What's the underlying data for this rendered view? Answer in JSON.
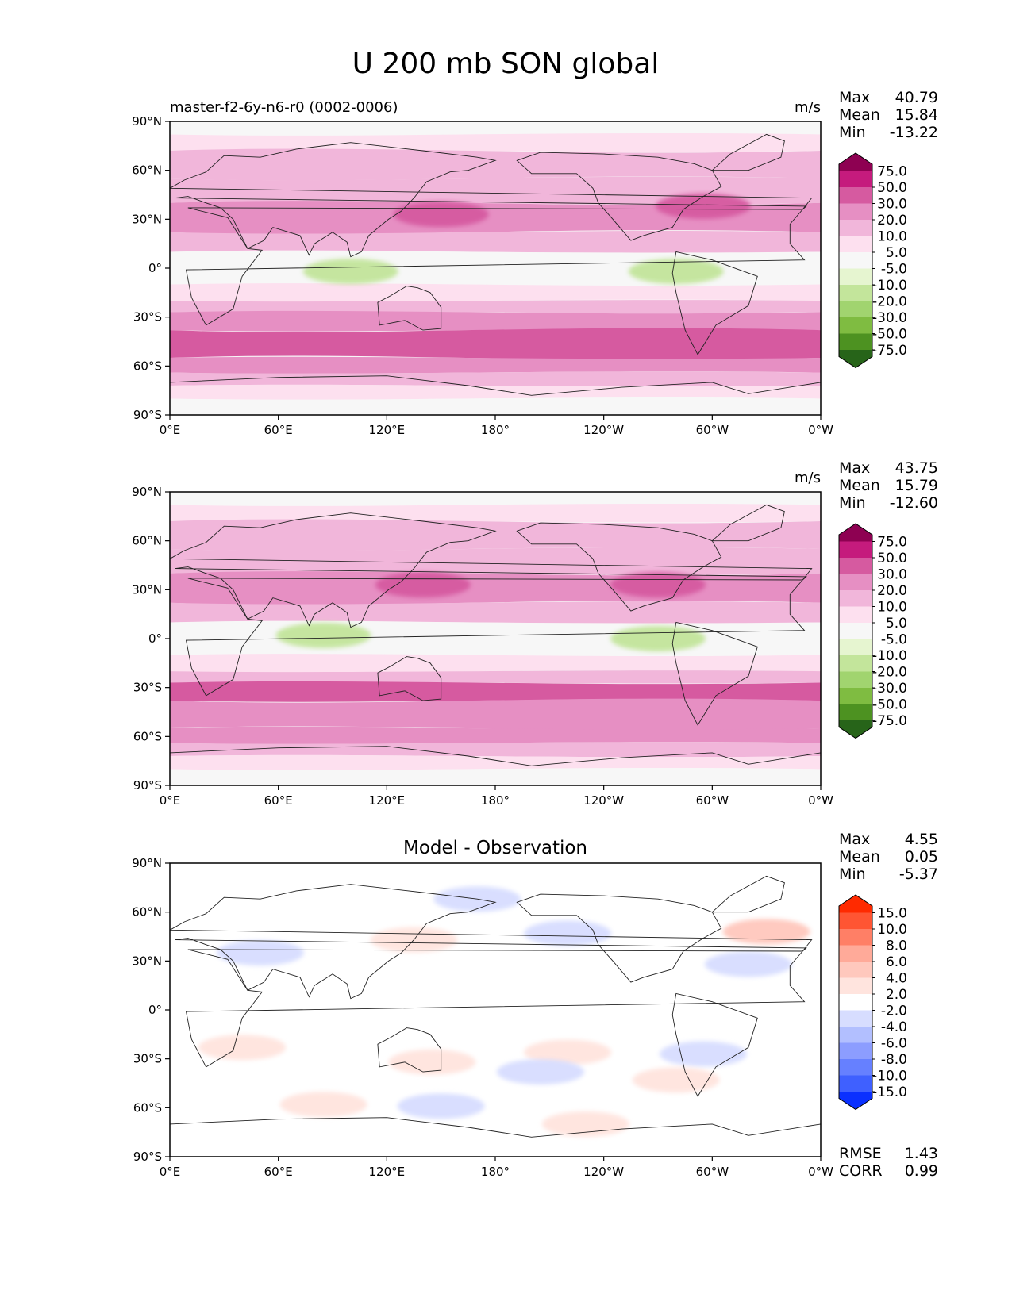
{
  "title": "U 200 mb SON global",
  "x_ticks": [
    "0°E",
    "60°E",
    "120°E",
    "180°",
    "120°W",
    "60°W",
    "0°W"
  ],
  "y_ticks": [
    "90°N",
    "60°N",
    "30°N",
    "0°",
    "30°S",
    "60°S",
    "90°S"
  ],
  "panels": [
    {
      "name": "model",
      "left_title": "master-f2-6y-n6-r0 (0002-0006)",
      "center_title": "",
      "units": "m/s",
      "stats": [
        {
          "label": "Max",
          "value": "40.79"
        },
        {
          "label": "Mean",
          "value": "15.84"
        },
        {
          "label": "Min",
          "value": "-13.22"
        }
      ],
      "colorbar": {
        "levels": [
          "75.0",
          "50.0",
          "30.0",
          "20.0",
          "10.0",
          "5.0",
          "-5.0",
          "-10.0",
          "-20.0",
          "-30.0",
          "-50.0",
          "-75.0"
        ],
        "colors": [
          "#8e0152",
          "#c51b7d",
          "#d65aa0",
          "#e68fc3",
          "#f1b6da",
          "#fde0ef",
          "#f7f7f7",
          "#e6f5d0",
          "#c3e59b",
          "#a1d46f",
          "#7fbc41",
          "#4d9221",
          "#276419"
        ]
      },
      "rmse_corr": []
    },
    {
      "name": "observation",
      "left_title": "",
      "center_title": "",
      "units": "m/s",
      "stats": [
        {
          "label": "Max",
          "value": "43.75"
        },
        {
          "label": "Mean",
          "value": "15.79"
        },
        {
          "label": "Min",
          "value": "-12.60"
        }
      ],
      "colorbar": {
        "levels": [
          "75.0",
          "50.0",
          "30.0",
          "20.0",
          "10.0",
          "5.0",
          "-5.0",
          "-10.0",
          "-20.0",
          "-30.0",
          "-50.0",
          "-75.0"
        ],
        "colors": [
          "#8e0152",
          "#c51b7d",
          "#d65aa0",
          "#e68fc3",
          "#f1b6da",
          "#fde0ef",
          "#f7f7f7",
          "#e6f5d0",
          "#c3e59b",
          "#a1d46f",
          "#7fbc41",
          "#4d9221",
          "#276419"
        ]
      },
      "rmse_corr": []
    },
    {
      "name": "difference",
      "left_title": "",
      "center_title": "Model - Observation",
      "units": "",
      "stats": [
        {
          "label": "Max",
          "value": "4.55"
        },
        {
          "label": "Mean",
          "value": "0.05"
        },
        {
          "label": "Min",
          "value": "-5.37"
        }
      ],
      "colorbar": {
        "levels": [
          "15.0",
          "10.0",
          "8.0",
          "6.0",
          "4.0",
          "2.0",
          "-2.0",
          "-4.0",
          "-6.0",
          "-8.0",
          "-10.0",
          "-15.0"
        ],
        "colors": [
          "#ff2a00",
          "#ff5533",
          "#ff7f66",
          "#ffaa99",
          "#ffc8bd",
          "#ffe4de",
          "#ffffff",
          "#d7ddff",
          "#b2bfff",
          "#8c9dff",
          "#6680ff",
          "#3f60ff",
          "#0a30ff"
        ]
      },
      "rmse_corr": [
        {
          "label": "RMSE",
          "value": "1.43"
        },
        {
          "label": "CORR",
          "value": "0.99"
        }
      ]
    }
  ],
  "chart_data": [
    {
      "type": "heatmap",
      "title": "U 200 mb SON global",
      "subtitle": "master-f2-6y-n6-r0 (0002-0006)",
      "units": "m/s",
      "x_range": [
        0,
        360
      ],
      "y_range": [
        -90,
        90
      ],
      "bands": [
        {
          "lat": [
            82,
            90
          ],
          "value": 0
        },
        {
          "lat": [
            72,
            82
          ],
          "value": 7
        },
        {
          "lat": [
            55,
            72
          ],
          "value": 12
        },
        {
          "lat": [
            40,
            55
          ],
          "value": 18
        },
        {
          "lat": [
            22,
            40
          ],
          "value": 25
        },
        {
          "lat": [
            10,
            22
          ],
          "value": 12
        },
        {
          "lat": [
            3,
            10
          ],
          "value": 2
        },
        {
          "lat": [
            -10,
            3
          ],
          "value": -4
        },
        {
          "lat": [
            -20,
            -10
          ],
          "value": 7
        },
        {
          "lat": [
            -27,
            -20
          ],
          "value": 15
        },
        {
          "lat": [
            -38,
            -27
          ],
          "value": 25
        },
        {
          "lat": [
            -55,
            -38
          ],
          "value": 32
        },
        {
          "lat": [
            -64,
            -55
          ],
          "value": 25
        },
        {
          "lat": [
            -72,
            -64
          ],
          "value": 15
        },
        {
          "lat": [
            -80,
            -72
          ],
          "value": 7
        },
        {
          "lat": [
            -90,
            -80
          ],
          "value": 0
        }
      ],
      "features": [
        {
          "lon": 150,
          "lat": 33,
          "value": 35
        },
        {
          "lon": 295,
          "lat": 38,
          "value": 35
        },
        {
          "lon": 100,
          "lat": -2,
          "value": -12
        },
        {
          "lon": 280,
          "lat": -2,
          "value": -12
        }
      ]
    },
    {
      "type": "heatmap",
      "units": "m/s",
      "x_range": [
        0,
        360
      ],
      "y_range": [
        -90,
        90
      ],
      "bands": [
        {
          "lat": [
            82,
            90
          ],
          "value": 0
        },
        {
          "lat": [
            72,
            82
          ],
          "value": 7
        },
        {
          "lat": [
            55,
            72
          ],
          "value": 12
        },
        {
          "lat": [
            40,
            55
          ],
          "value": 18
        },
        {
          "lat": [
            22,
            40
          ],
          "value": 25
        },
        {
          "lat": [
            10,
            22
          ],
          "value": 12
        },
        {
          "lat": [
            3,
            10
          ],
          "value": 2
        },
        {
          "lat": [
            -10,
            3
          ],
          "value": -4
        },
        {
          "lat": [
            -20,
            -10
          ],
          "value": 7
        },
        {
          "lat": [
            -27,
            -20
          ],
          "value": 15
        },
        {
          "lat": [
            -38,
            -27
          ],
          "value": 32
        },
        {
          "lat": [
            -55,
            -38
          ],
          "value": 25
        },
        {
          "lat": [
            -64,
            -55
          ],
          "value": 25
        },
        {
          "lat": [
            -72,
            -64
          ],
          "value": 15
        },
        {
          "lat": [
            -80,
            -72
          ],
          "value": 7
        },
        {
          "lat": [
            -90,
            -80
          ],
          "value": 0
        }
      ],
      "features": [
        {
          "lon": 140,
          "lat": 33,
          "value": 35
        },
        {
          "lon": 270,
          "lat": 33,
          "value": 35
        },
        {
          "lon": 85,
          "lat": 2,
          "value": -12
        },
        {
          "lon": 270,
          "lat": 0,
          "value": -12
        }
      ]
    },
    {
      "type": "heatmap",
      "title": "Model - Observation",
      "x_range": [
        0,
        360
      ],
      "y_range": [
        -90,
        90
      ],
      "features": [
        {
          "lon": 135,
          "lat": 43,
          "value": 3
        },
        {
          "lon": 220,
          "lat": 47,
          "value": -3
        },
        {
          "lon": 330,
          "lat": 48,
          "value": 4
        },
        {
          "lon": 320,
          "lat": 28,
          "value": -3
        },
        {
          "lon": 50,
          "lat": 35,
          "value": -2.5
        },
        {
          "lon": 145,
          "lat": -32,
          "value": 3
        },
        {
          "lon": 220,
          "lat": -26,
          "value": 3
        },
        {
          "lon": 205,
          "lat": -38,
          "value": -3
        },
        {
          "lon": 295,
          "lat": -27,
          "value": -3
        },
        {
          "lon": 280,
          "lat": -43,
          "value": 2.5
        },
        {
          "lon": 230,
          "lat": -70,
          "value": 3
        },
        {
          "lon": 85,
          "lat": -58,
          "value": 2.5
        },
        {
          "lon": 150,
          "lat": -59,
          "value": -2.5
        },
        {
          "lon": 40,
          "lat": -23,
          "value": 2.5
        },
        {
          "lon": 170,
          "lat": 68,
          "value": -2.5
        }
      ]
    }
  ]
}
